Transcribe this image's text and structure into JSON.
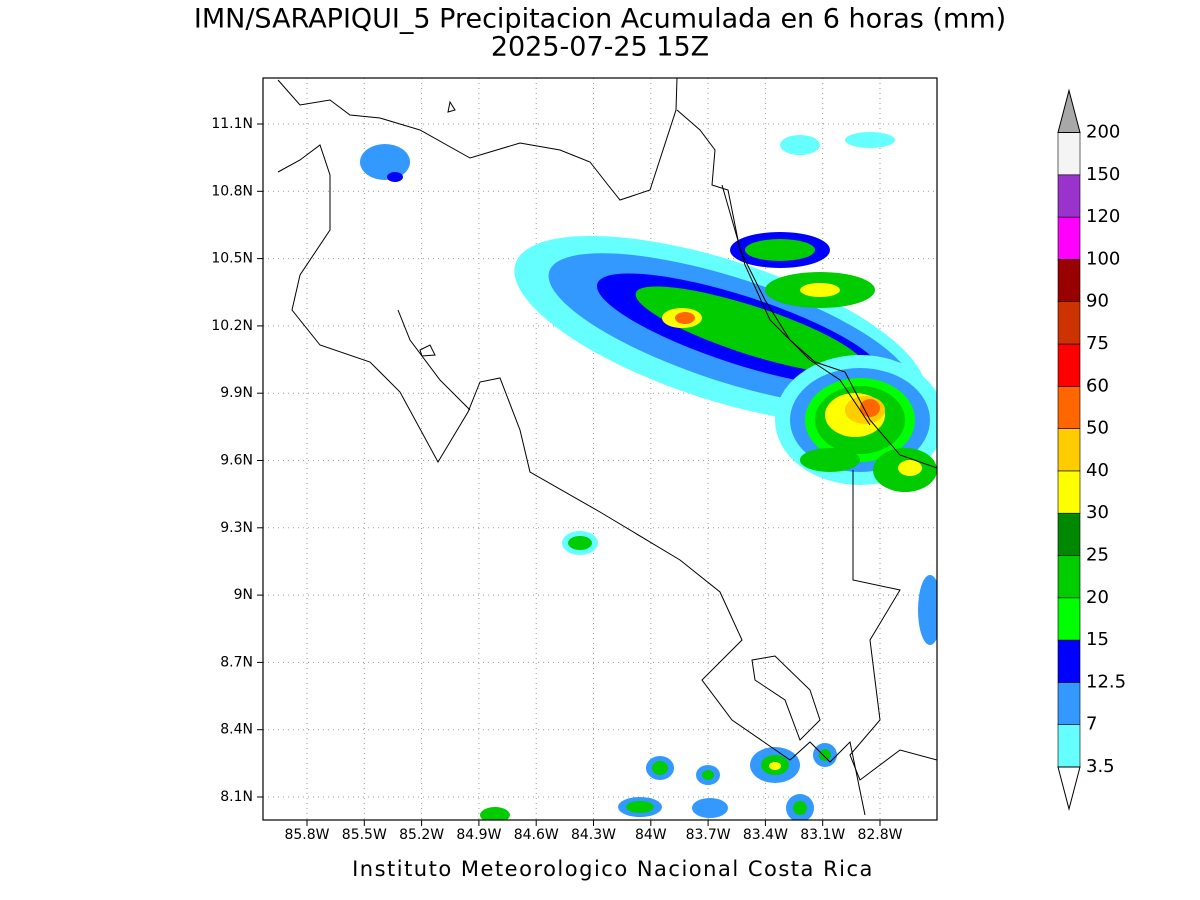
{
  "title": "IMN/SARAPIQUI_5 Precipitacion Acumulada en 6 horas (mm)",
  "subtitle": "2025-07-25 15Z",
  "x_axis": {
    "ticks": [
      "85.8W",
      "85.5W",
      "85.2W",
      "84.9W",
      "84.6W",
      "84.3W",
      "84W",
      "83.7W",
      "83.4W",
      "83.1W",
      "82.8W"
    ]
  },
  "y_axis": {
    "ticks": [
      "11.1N",
      "10.8N",
      "10.5N",
      "10.2N",
      "9.9N",
      "9.6N",
      "9.3N",
      "9N",
      "8.7N",
      "8.4N",
      "8.1N"
    ]
  },
  "colorbar": {
    "labels": [
      "3.5",
      "7",
      "12.5",
      "15",
      "20",
      "25",
      "30",
      "40",
      "50",
      "60",
      "75",
      "90",
      "100",
      "120",
      "150",
      "200"
    ],
    "colors": [
      "#66ffff",
      "#3399ff",
      "#0000ff",
      "#00ff00",
      "#00cc00",
      "#008800",
      "#ffff00",
      "#ffcc00",
      "#ff6600",
      "#ff0000",
      "#cc3300",
      "#990000",
      "#ff00ff",
      "#9933cc",
      "#f4f4f4"
    ],
    "under_color": "#ffffff",
    "over_color": "#a8a8a8"
  },
  "footer": "Instituto Meteorologico Nacional Costa Rica"
}
